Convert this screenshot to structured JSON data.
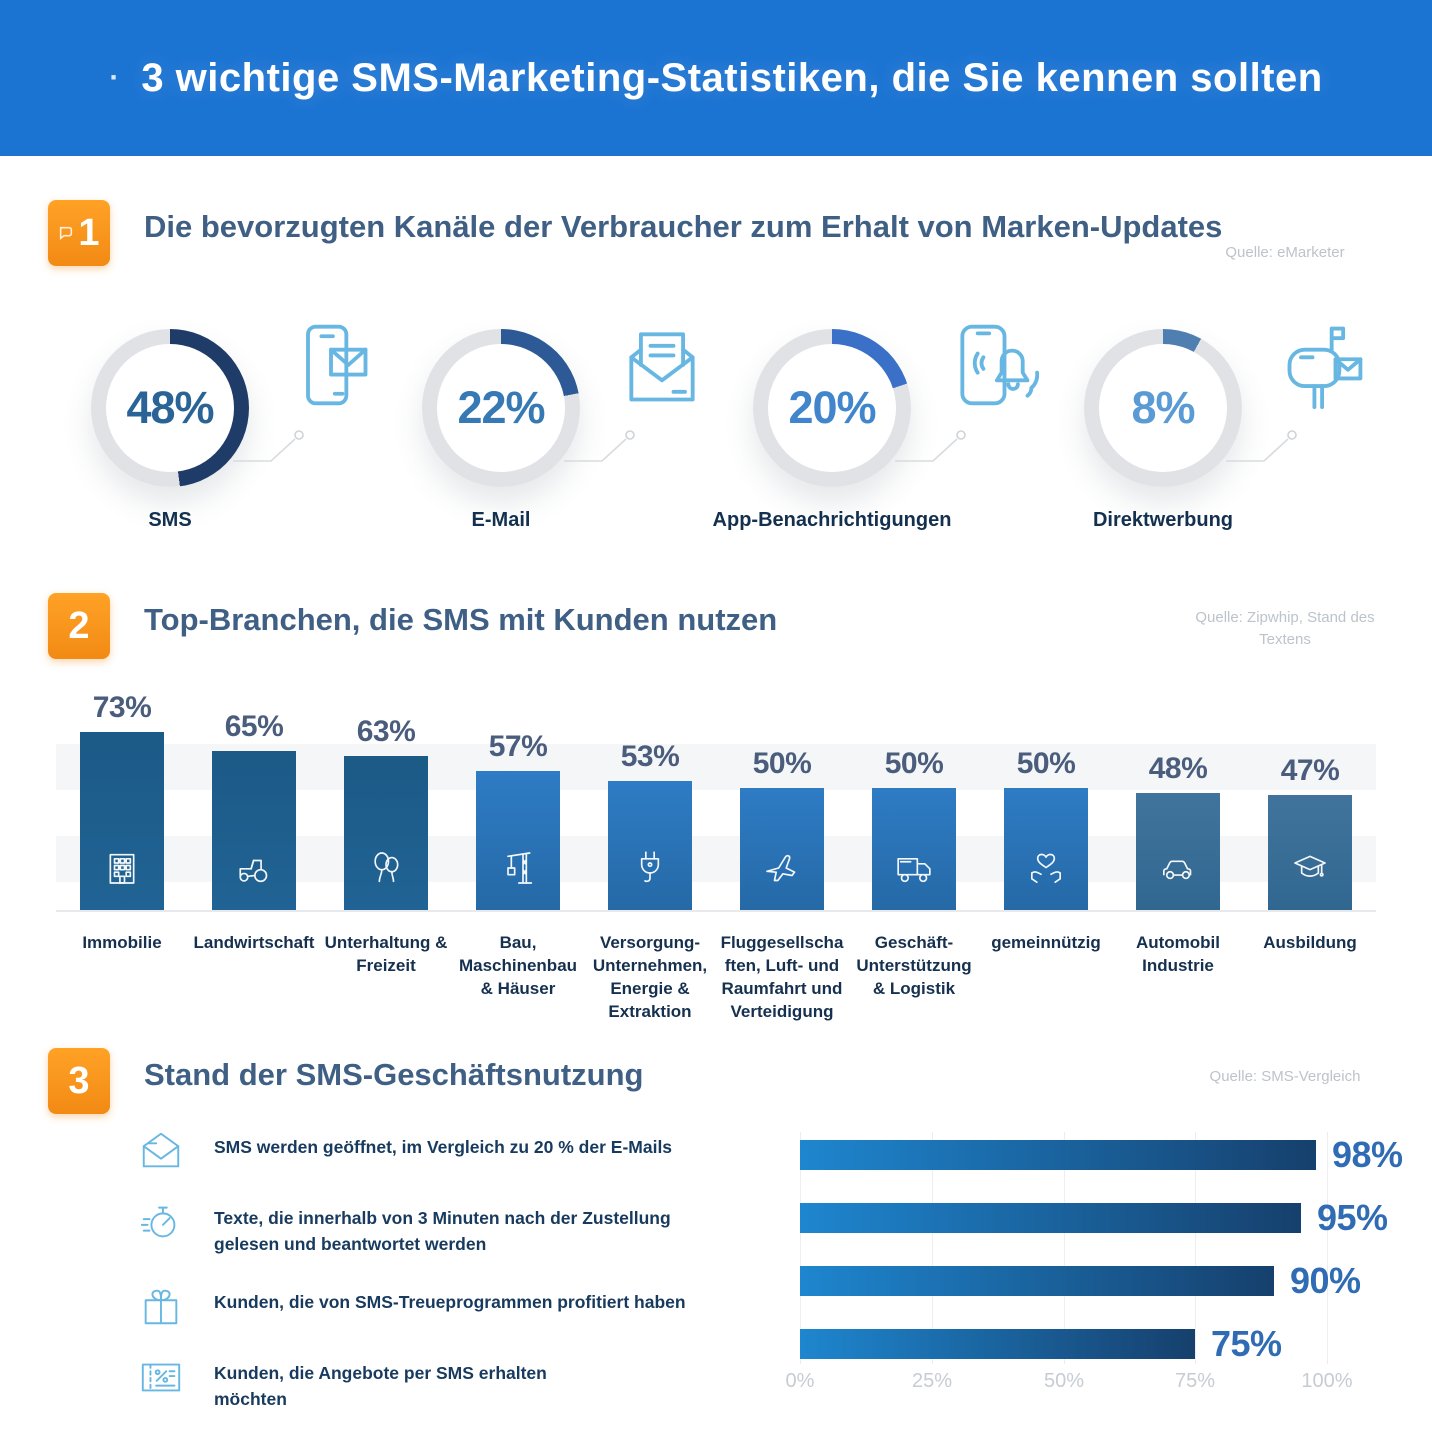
{
  "banner": {
    "bullet": "·",
    "title": "3 wichtige SMS-Marketing-Statistiken, die Sie kennen sollten"
  },
  "sections": {
    "s1": {
      "badge": "1",
      "title": "Die bevorzugten Kanäle der Verbraucher zum Erhalt von Marken-Updates",
      "source": "Quelle: eMarketer"
    },
    "s2": {
      "badge": "2",
      "title": "Top-Branchen, die SMS mit Kunden nutzen",
      "source": "Quelle: Zipwhip, Stand des Textens"
    },
    "s3": {
      "badge": "3",
      "title": "Stand der SMS-Geschäftsnutzung",
      "source": "Quelle: SMS-Vergleich"
    }
  },
  "colors": {
    "banner_bg": "#1b73d2",
    "accent_orange": "#f28a14",
    "section_title": "#3f6084",
    "label_navy": "#13304f",
    "icon_light_blue": "#67b7e2",
    "donut_track": "#e0e2e6",
    "source_gray": "#bcc3ca",
    "axis_gray": "#c6ccd3"
  },
  "chart_data": [
    {
      "type": "pie",
      "title": "Die bevorzugten Kanäle der Verbraucher zum Erhalt von Marken-Updates",
      "units": "%",
      "categories": [
        "SMS",
        "E-Mail",
        "App-Benachrichtigungen",
        "Direktwerbung"
      ],
      "values": [
        48,
        22,
        20,
        8
      ],
      "items": [
        {
          "label": "SMS",
          "value": 48,
          "value_label": "48%",
          "icon": "phone-message-icon",
          "arc_color": "#1f3c69",
          "text_color": "#2a6496"
        },
        {
          "label": "E-Mail",
          "value": 22,
          "value_label": "22%",
          "icon": "open-envelope-icon",
          "arc_color": "#2d5a96",
          "text_color": "#3779b5"
        },
        {
          "label": "App-Benachrichtigungen",
          "value": 20,
          "value_label": "20%",
          "icon": "phone-notification-icon",
          "arc_color": "#3a70c8",
          "text_color": "#4186cc"
        },
        {
          "label": "Direktwerbung",
          "value": 8,
          "value_label": "8%",
          "icon": "mailbox-icon",
          "arc_color": "#4e7fb0",
          "text_color": "#5b9bd5"
        }
      ]
    },
    {
      "type": "bar",
      "title": "Top-Branchen, die SMS mit Kunden nutzen",
      "ylim": [
        0,
        90
      ],
      "grid": "horizontal-bands",
      "categories": [
        "Immobilie",
        "Landwirtschaft",
        "Unterhaltung & Freizeit",
        "Bau, Maschinenbau & Häuser",
        "Versorgung-Unternehmen, Energie & Extraktion",
        "Fluggesellschaften, Luft- und Raumfahrt und Verteidigung",
        "Geschäft-Unterstützung & Logistik",
        "gemeinnützig",
        "Automobil Industrie",
        "Ausbildung"
      ],
      "values": [
        73,
        65,
        63,
        57,
        53,
        50,
        50,
        50,
        48,
        47
      ],
      "items": [
        {
          "label": "Immobilie",
          "value": 73,
          "value_label": "73%",
          "icon": "building-icon",
          "color_top": "#1c5a87",
          "color_bottom": "#206394"
        },
        {
          "label": "Landwirtschaft",
          "value": 65,
          "value_label": "65%",
          "icon": "tractor-icon",
          "color_top": "#1c5a87",
          "color_bottom": "#206394"
        },
        {
          "label": "Unterhaltung & Freizeit",
          "value": 63,
          "value_label": "63%",
          "icon": "balloons-icon",
          "color_top": "#1c5a87",
          "color_bottom": "#206394"
        },
        {
          "label": "Bau, Maschinenbau & Häuser",
          "value": 57,
          "value_label": "57%",
          "icon": "crane-icon",
          "color_top": "#2e7cc5",
          "color_bottom": "#2569a6"
        },
        {
          "label": "Versorgung-Unternehmen, Energie & Extraktion",
          "value": 53,
          "value_label": "53%",
          "icon": "plug-icon",
          "color_top": "#2e7cc5",
          "color_bottom": "#2569a6"
        },
        {
          "label": "Fluggesellschaften, Luft- und Raumfahrt und Verteidigung",
          "value": 50,
          "value_label": "50%",
          "icon": "airplane-icon",
          "color_top": "#2e7cc5",
          "color_bottom": "#2569a6"
        },
        {
          "label": "Geschäft-Unterstützung & Logistik",
          "value": 50,
          "value_label": "50%",
          "icon": "truck-icon",
          "color_top": "#2e7cc5",
          "color_bottom": "#2569a6"
        },
        {
          "label": "gemeinnützig",
          "value": 50,
          "value_label": "50%",
          "icon": "hands-heart-icon",
          "color_top": "#2e7cc5",
          "color_bottom": "#2569a6"
        },
        {
          "label": "Automobil Industrie",
          "value": 48,
          "value_label": "48%",
          "icon": "car-icon",
          "color_top": "#41749d",
          "color_bottom": "#306790"
        },
        {
          "label": "Ausbildung",
          "value": 47,
          "value_label": "47%",
          "icon": "graduation-cap-icon",
          "color_top": "#41749d",
          "color_bottom": "#306790"
        }
      ]
    },
    {
      "type": "bar",
      "orientation": "horizontal",
      "title": "Stand der SMS-Geschäftsnutzung",
      "xlim": [
        0,
        100
      ],
      "xticks": [
        "0%",
        "25%",
        "50%",
        "75%",
        "100%"
      ],
      "legend_position": "left-list",
      "bar_gradient": [
        "#1e86cf",
        "#16406d"
      ],
      "categories": [
        "SMS werden geöffnet, im Vergleich zu 20 % der E-Mails",
        "Texte, die innerhalb von 3 Minuten nach der Zustellung gelesen und beantwortet werden",
        "Kunden, die von SMS-Treueprogrammen profitiert haben",
        "Kunden, die Angebote per SMS erhalten möchten"
      ],
      "values": [
        98,
        95,
        90,
        75
      ],
      "items": [
        {
          "label": "SMS werden geöffnet, im Vergleich zu 20 % der E-Mails",
          "value": 98,
          "value_label": "98%",
          "icon": "open-envelope-icon"
        },
        {
          "label": "Texte, die innerhalb von 3 Minuten nach der Zustellung gelesen und beantwortet werden",
          "value": 95,
          "value_label": "95%",
          "icon": "stopwatch-icon"
        },
        {
          "label": "Kunden, die von SMS-Treueprogrammen profitiert haben",
          "value": 90,
          "value_label": "90%",
          "icon": "gift-icon"
        },
        {
          "label": "Kunden, die Angebote per SMS erhalten möchten",
          "value": 75,
          "value_label": "75%",
          "icon": "coupon-icon"
        }
      ]
    }
  ]
}
